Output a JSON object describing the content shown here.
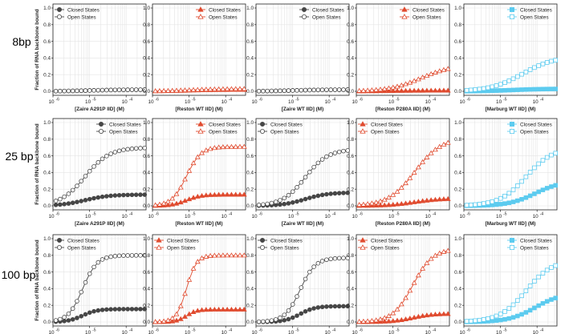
{
  "figure": {
    "row_labels": [
      "8bp",
      "25 bp",
      "100 bp"
    ],
    "y_axis_label": "Fraction of RNA backbone bound",
    "x_tick_base": "10",
    "x_tick_exponents": [
      "-6",
      "-5",
      "-4"
    ],
    "legend": {
      "closed": "Closed States",
      "open": "Open States"
    }
  },
  "colors": {
    "Zaire": "#464646",
    "Reston": "#e04b2f",
    "Marburg": "#5ccbef"
  },
  "chart_data": [
    {
      "type": "line",
      "row": "8bp",
      "title": "",
      "xlabel": "[Zaire A291P IID] (M)",
      "ylabel": "Fraction of RNA backbone bound",
      "xscale": "log",
      "xlim": [
        1e-06,
        0.00035
      ],
      "ylim": [
        0,
        1
      ],
      "yticks": [
        0.0,
        0.2,
        0.4,
        0.6,
        0.8,
        1.0
      ],
      "legend": "top-left",
      "marker": "circle",
      "color": "Zaire",
      "series": [
        {
          "name": "Closed States",
          "kd": 1e-05,
          "max": 0.02,
          "hill": 1
        },
        {
          "name": "Open States",
          "kd": 1e-05,
          "max": 0.02,
          "hill": 1
        }
      ]
    },
    {
      "type": "line",
      "row": "8bp",
      "title": "",
      "xlabel": "[Reston WT IID] (M)",
      "ylabel": "Fraction of RNA backbone bound",
      "xscale": "log",
      "xlim": [
        1e-06,
        0.00035
      ],
      "ylim": [
        0,
        1
      ],
      "yticks": [
        0.0,
        0.2,
        0.4,
        0.6,
        0.8,
        1.0
      ],
      "legend": "top-right",
      "marker": "triangle",
      "color": "Reston",
      "series": [
        {
          "name": "Closed States",
          "kd": 1e-05,
          "max": 0.02,
          "hill": 1
        },
        {
          "name": "Open States",
          "kd": 1e-05,
          "max": 0.03,
          "hill": 1
        }
      ]
    },
    {
      "type": "line",
      "row": "8bp",
      "title": "",
      "xlabel": "[Zaire WT IID] (M)",
      "ylabel": "Fraction of RNA backbone bound",
      "xscale": "log",
      "xlim": [
        1e-06,
        0.00035
      ],
      "ylim": [
        0,
        1
      ],
      "yticks": [
        0.0,
        0.2,
        0.4,
        0.6,
        0.8,
        1.0
      ],
      "legend": "top-right",
      "marker": "circle",
      "color": "Zaire",
      "series": [
        {
          "name": "Closed States",
          "kd": 1e-05,
          "max": 0.02,
          "hill": 1
        },
        {
          "name": "Open States",
          "kd": 1e-05,
          "max": 0.02,
          "hill": 1
        }
      ]
    },
    {
      "type": "line",
      "row": "8bp",
      "title": "",
      "xlabel": "[Reston P280A IID] (M)",
      "ylabel": "Fraction of RNA backbone bound",
      "xscale": "log",
      "xlim": [
        1e-06,
        0.00035
      ],
      "ylim": [
        0,
        1
      ],
      "yticks": [
        0.0,
        0.2,
        0.4,
        0.6,
        0.8,
        1.0
      ],
      "legend": "top-right",
      "marker": "triangle",
      "color": "Reston",
      "series": [
        {
          "name": "Closed States",
          "kd": 1e-05,
          "max": 0.01,
          "hill": 1
        },
        {
          "name": "Open States",
          "kd": 6e-05,
          "max": 0.32,
          "hill": 1
        }
      ]
    },
    {
      "type": "line",
      "row": "8bp",
      "title": "",
      "xlabel": "[Marburg WT IID] (M)",
      "ylabel": "Fraction of RNA backbone bound",
      "xscale": "log",
      "xlim": [
        1e-06,
        0.00035
      ],
      "ylim": [
        0,
        1
      ],
      "yticks": [
        0.0,
        0.2,
        0.4,
        0.6,
        0.8,
        1.0
      ],
      "legend": "top-right",
      "marker": "square",
      "color": "Marburg",
      "series": [
        {
          "name": "Closed States",
          "kd": 2e-05,
          "max": 0.03,
          "hill": 1
        },
        {
          "name": "Open States",
          "kd": 4e-05,
          "max": 0.42,
          "hill": 1
        }
      ]
    },
    {
      "type": "line",
      "row": "25 bp",
      "title": "",
      "xlabel": "[Zaire A291P IID] (M)",
      "ylabel": "Fraction of RNA backbone bound",
      "xscale": "log",
      "xlim": [
        1e-06,
        0.00035
      ],
      "ylim": [
        0,
        1
      ],
      "yticks": [
        0.0,
        0.2,
        0.4,
        0.6,
        0.8,
        1.0
      ],
      "legend": "top-right",
      "marker": "circle",
      "color": "Zaire",
      "series": [
        {
          "name": "Closed States",
          "kd": 7.5e-06,
          "max": 0.135,
          "hill": 1.3
        },
        {
          "name": "Open States",
          "kd": 7.5e-06,
          "max": 0.7,
          "hill": 1.3
        }
      ]
    },
    {
      "type": "line",
      "row": "25 bp",
      "title": "",
      "xlabel": "[Reston WT IID] (M)",
      "ylabel": "Fraction of RNA backbone bound",
      "xscale": "log",
      "xlim": [
        1e-06,
        0.00035
      ],
      "ylim": [
        0,
        1
      ],
      "yticks": [
        0.0,
        0.2,
        0.4,
        0.6,
        0.8,
        1.0
      ],
      "legend": "top-right",
      "marker": "triangle",
      "color": "Reston",
      "series": [
        {
          "name": "Closed States",
          "kd": 8.5e-06,
          "max": 0.135,
          "hill": 2.2
        },
        {
          "name": "Open States",
          "kd": 8.5e-06,
          "max": 0.71,
          "hill": 2.2
        }
      ]
    },
    {
      "type": "line",
      "row": "25 bp",
      "title": "",
      "xlabel": "[Zaire WT IID] (M)",
      "ylabel": "Fraction of RNA backbone bound",
      "xscale": "log",
      "xlim": [
        1e-06,
        0.00035
      ],
      "ylim": [
        0,
        1
      ],
      "yticks": [
        0.0,
        0.2,
        0.4,
        0.6,
        0.8,
        1.0
      ],
      "legend": "top-left",
      "marker": "circle",
      "color": "Zaire",
      "series": [
        {
          "name": "Closed States",
          "kd": 2.2e-05,
          "max": 0.16,
          "hill": 1.4
        },
        {
          "name": "Open States",
          "kd": 2.2e-05,
          "max": 0.68,
          "hill": 1.4
        }
      ]
    },
    {
      "type": "line",
      "row": "25 bp",
      "title": "",
      "xlabel": "[Reston P280A IID] (M)",
      "ylabel": "Fraction of RNA backbone bound",
      "xscale": "log",
      "xlim": [
        1e-06,
        0.00035
      ],
      "ylim": [
        0,
        1
      ],
      "yticks": [
        0.0,
        0.2,
        0.4,
        0.6,
        0.8,
        1.0
      ],
      "legend": "top-left",
      "marker": "triangle",
      "color": "Reston",
      "series": [
        {
          "name": "Closed States",
          "kd": 4e-05,
          "max": 0.09,
          "hill": 1.2
        },
        {
          "name": "Open States",
          "kd": 4e-05,
          "max": 0.82,
          "hill": 1.2
        }
      ]
    },
    {
      "type": "line",
      "row": "25 bp",
      "title": "",
      "xlabel": "[Marburg WT IID] (M)",
      "ylabel": "Fraction of RNA backbone bound",
      "xscale": "log",
      "xlim": [
        1e-06,
        0.00035
      ],
      "ylim": [
        0,
        1
      ],
      "yticks": [
        0.0,
        0.2,
        0.4,
        0.6,
        0.8,
        1.0
      ],
      "legend": "top-right",
      "marker": "square",
      "color": "Marburg",
      "series": [
        {
          "name": "Closed States",
          "kd": 9e-05,
          "max": 0.3,
          "hill": 1.2
        },
        {
          "name": "Open States",
          "kd": 5e-05,
          "max": 0.7,
          "hill": 1.2
        }
      ]
    },
    {
      "type": "line",
      "row": "100 bp",
      "title": "",
      "xlabel": "[Zaire A291P IID] (M)",
      "ylabel": "Fraction of RNA backbone bound",
      "xscale": "log",
      "xlim": [
        1e-06,
        0.00035
      ],
      "ylim": [
        0,
        1
      ],
      "yticks": [
        0.0,
        0.2,
        0.4,
        0.6,
        0.8,
        1.0
      ],
      "legend": "top-left",
      "marker": "circle",
      "color": "Zaire",
      "series": [
        {
          "name": "Closed States",
          "kd": 6.5e-06,
          "max": 0.155,
          "hill": 2.2
        },
        {
          "name": "Open States",
          "kd": 6.5e-06,
          "max": 0.8,
          "hill": 2.2
        }
      ]
    },
    {
      "type": "line",
      "row": "100 bp",
      "title": "",
      "xlabel": "[Reston WT IID] (M)",
      "ylabel": "Fraction of RNA backbone bound",
      "xscale": "log",
      "xlim": [
        1e-06,
        0.00035
      ],
      "ylim": [
        0,
        1
      ],
      "yticks": [
        0.0,
        0.2,
        0.4,
        0.6,
        0.8,
        1.0
      ],
      "legend": "top-left",
      "marker": "triangle",
      "color": "Reston",
      "series": [
        {
          "name": "Closed States",
          "kd": 8.5e-06,
          "max": 0.15,
          "hill": 3.2
        },
        {
          "name": "Open States",
          "kd": 8.5e-06,
          "max": 0.8,
          "hill": 3.2
        }
      ]
    },
    {
      "type": "line",
      "row": "100 bp",
      "title": "",
      "xlabel": "[Zaire WT IID] (M)",
      "ylabel": "Fraction of RNA backbone bound",
      "xscale": "log",
      "xlim": [
        1e-06,
        0.00035
      ],
      "ylim": [
        0,
        1
      ],
      "yticks": [
        0.0,
        0.2,
        0.4,
        0.6,
        0.8,
        1.0
      ],
      "legend": "top-left",
      "marker": "circle",
      "color": "Zaire",
      "series": [
        {
          "name": "Closed States",
          "kd": 1.6e-05,
          "max": 0.19,
          "hill": 2.1
        },
        {
          "name": "Open States",
          "kd": 1.6e-05,
          "max": 0.77,
          "hill": 2.1
        }
      ]
    },
    {
      "type": "line",
      "row": "100 bp",
      "title": "",
      "xlabel": "[Reston P280A IID] (M)",
      "ylabel": "Fraction of RNA backbone bound",
      "xscale": "log",
      "xlim": [
        1e-06,
        0.00035
      ],
      "ylim": [
        0,
        1
      ],
      "yticks": [
        0.0,
        0.2,
        0.4,
        0.6,
        0.8,
        1.0
      ],
      "legend": "top-left",
      "marker": "triangle",
      "color": "Reston",
      "series": [
        {
          "name": "Closed States",
          "kd": 3.5e-05,
          "max": 0.1,
          "hill": 1.6
        },
        {
          "name": "Open States",
          "kd": 3.5e-05,
          "max": 0.88,
          "hill": 1.6
        }
      ]
    },
    {
      "type": "line",
      "row": "100 bp",
      "title": "",
      "xlabel": "[Marburg WT IID] (M)",
      "ylabel": "Fraction of RNA backbone bound",
      "xscale": "log",
      "xlim": [
        1e-06,
        0.00035
      ],
      "ylim": [
        0,
        1
      ],
      "yticks": [
        0.0,
        0.2,
        0.4,
        0.6,
        0.8,
        1.0
      ],
      "legend": "top-right",
      "marker": "square",
      "color": "Marburg",
      "series": [
        {
          "name": "Closed States",
          "kd": 9e-05,
          "max": 0.35,
          "hill": 1.2
        },
        {
          "name": "Open States",
          "kd": 5e-05,
          "max": 0.75,
          "hill": 1.2
        }
      ]
    }
  ]
}
